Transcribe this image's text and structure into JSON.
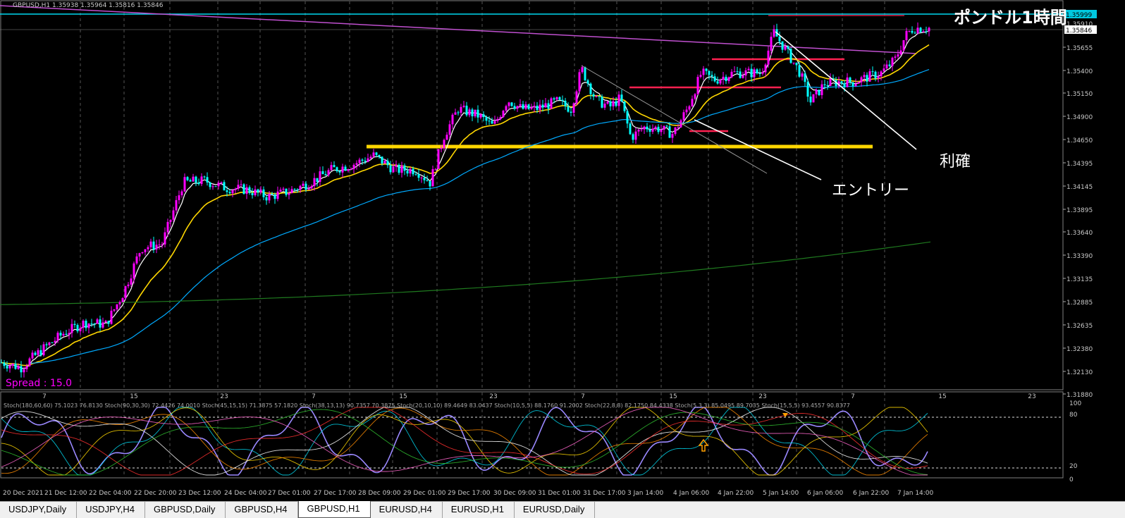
{
  "header": {
    "symbol_info": "GBPUSD,H1  1.35938 1.35964 1.35816 1.35846",
    "title_overlay": "ポンドル1時間",
    "spread": "Spread : 15.0"
  },
  "annotations": {
    "entry": "エントリー",
    "take_profit": "利確"
  },
  "price_boxes": {
    "line_price": "1.35999",
    "current_price": "1.35846"
  },
  "colors": {
    "bull_candle": "#ff00ff",
    "bear_candle": "#00ffff",
    "ma_fast": "#ffffff",
    "ma_mid": "#ffd700",
    "ma_slow": "#00aaff",
    "ma_long": "#1f7a1f",
    "trendline": "#c050d0",
    "support": "#ffd700",
    "resistance": "#ff2050"
  },
  "stoch_label": "Stoch(180,60,60) 75.1023 76.8130  Stoch(90,30,30) 72.4426 74.0010  Stoch(45,15,15) 71.3875 57.1820  Stoch(38,13,13) 90.7357 70.3875  Stoch(20,10,10) 89.4649 83.0437  Stoch(10,5,5) 88.1760 91.2002  Stoch(22,8,8) 82.1750 84.4338  Stoch(5,3,3) 85.0495 89.7035  Stoch(15,5,5) 93.4557 90.8377",
  "chart_data": {
    "type": "candlestick",
    "symbol": "GBPUSD",
    "timeframe": "H1",
    "y_ticks": [
      "1.35999",
      "1.35910",
      "1.35846",
      "1.35655",
      "1.35400",
      "1.35150",
      "1.34900",
      "1.34650",
      "1.34395",
      "1.34145",
      "1.33895",
      "1.33640",
      "1.33390",
      "1.33135",
      "1.32885",
      "1.32635",
      "1.32380",
      "1.32130",
      "1.31880"
    ],
    "ylim": [
      1.3188,
      1.3618
    ],
    "upper_dates": [
      "7",
      "15",
      "23",
      "7",
      "15",
      "23",
      "7",
      "15",
      "23",
      "7",
      "15",
      "23"
    ],
    "lower_dates": [
      "20 Dec 2021",
      "21 Dec 12:00",
      "22 Dec 04:00",
      "22 Dec 20:00",
      "23 Dec 12:00",
      "24 Dec 04:00",
      "27 Dec 01:00",
      "27 Dec 17:00",
      "28 Dec 09:00",
      "29 Dec 01:00",
      "29 Dec 17:00",
      "30 Dec 09:00",
      "31 Dec 01:00",
      "31 Dec 17:00",
      "3 Jan 14:00",
      "4 Jan 06:00",
      "4 Jan 22:00",
      "5 Jan 14:00",
      "6 Jan 06:00",
      "6 Jan 22:00",
      "7 Jan 14:00"
    ],
    "price_path": [
      [
        0,
        1.3218
      ],
      [
        30,
        1.3212
      ],
      [
        60,
        1.3232
      ],
      [
        90,
        1.325
      ],
      [
        120,
        1.3262
      ],
      [
        150,
        1.326
      ],
      [
        175,
        1.3295
      ],
      [
        200,
        1.3345
      ],
      [
        230,
        1.335
      ],
      [
        260,
        1.3418
      ],
      [
        290,
        1.342
      ],
      [
        320,
        1.3412
      ],
      [
        350,
        1.341
      ],
      [
        380,
        1.3402
      ],
      [
        410,
        1.3408
      ],
      [
        440,
        1.3418
      ],
      [
        470,
        1.3432
      ],
      [
        500,
        1.3438
      ],
      [
        530,
        1.3448
      ],
      [
        560,
        1.3432
      ],
      [
        590,
        1.3432
      ],
      [
        610,
        1.3418
      ],
      [
        630,
        1.347
      ],
      [
        650,
        1.35
      ],
      [
        680,
        1.3492
      ],
      [
        700,
        1.348
      ],
      [
        720,
        1.351
      ],
      [
        740,
        1.35
      ],
      [
        760,
        1.35
      ],
      [
        790,
        1.3508
      ],
      [
        810,
        1.35
      ],
      [
        825,
        1.3545
      ],
      [
        845,
        1.351
      ],
      [
        865,
        1.3502
      ],
      [
        880,
        1.3512
      ],
      [
        895,
        1.3468
      ],
      [
        915,
        1.348
      ],
      [
        935,
        1.3478
      ],
      [
        955,
        1.3472
      ],
      [
        975,
        1.35
      ],
      [
        995,
        1.354
      ],
      [
        1015,
        1.3532
      ],
      [
        1040,
        1.354
      ],
      [
        1060,
        1.354
      ],
      [
        1080,
        1.354
      ],
      [
        1098,
        1.3585
      ],
      [
        1115,
        1.3565
      ],
      [
        1135,
        1.354
      ],
      [
        1150,
        1.3508
      ],
      [
        1170,
        1.3528
      ],
      [
        1190,
        1.353
      ],
      [
        1210,
        1.353
      ],
      [
        1230,
        1.3535
      ],
      [
        1250,
        1.354
      ],
      [
        1270,
        1.3555
      ],
      [
        1285,
        1.3582
      ],
      [
        1296,
        1.359
      ]
    ],
    "horizontal_levels": [
      {
        "price": 1.35999,
        "color": "cyan"
      },
      {
        "price": 1.3459,
        "color": "yellow",
        "label": "support"
      },
      {
        "price": 1.3516,
        "color": "red"
      },
      {
        "price": 1.354,
        "color": "red"
      },
      {
        "price": 1.3478,
        "color": "red"
      }
    ],
    "stoch_ylim": [
      0,
      100
    ],
    "stoch_ticks": [
      "100",
      "80",
      "20",
      "0"
    ],
    "stoch_levels": [
      80,
      20
    ]
  }
}
